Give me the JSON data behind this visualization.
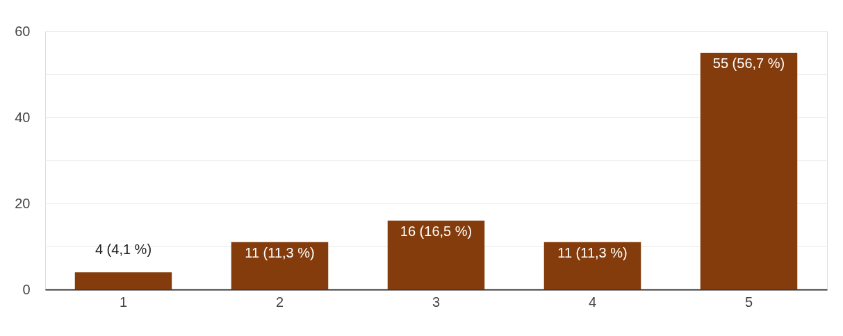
{
  "chart_data": {
    "type": "bar",
    "categories": [
      "1",
      "2",
      "3",
      "4",
      "5"
    ],
    "series": [
      {
        "color": "#843c0c",
        "values": [
          4,
          11,
          16,
          11,
          55
        ]
      }
    ],
    "value_labels": [
      "4 (4,1 %)",
      "11 (11,3 %)",
      "16 (16,5 %)",
      "11 (11,3 %)",
      "55 (56,7 %)"
    ],
    "ylim": [
      0,
      60
    ],
    "yticks": [
      0,
      {
        "value": 10,
        "label": null
      },
      20,
      {
        "value": 30,
        "label": null
      },
      40,
      {
        "value": 50,
        "label": null
      },
      60
    ],
    "grid": "y"
  }
}
